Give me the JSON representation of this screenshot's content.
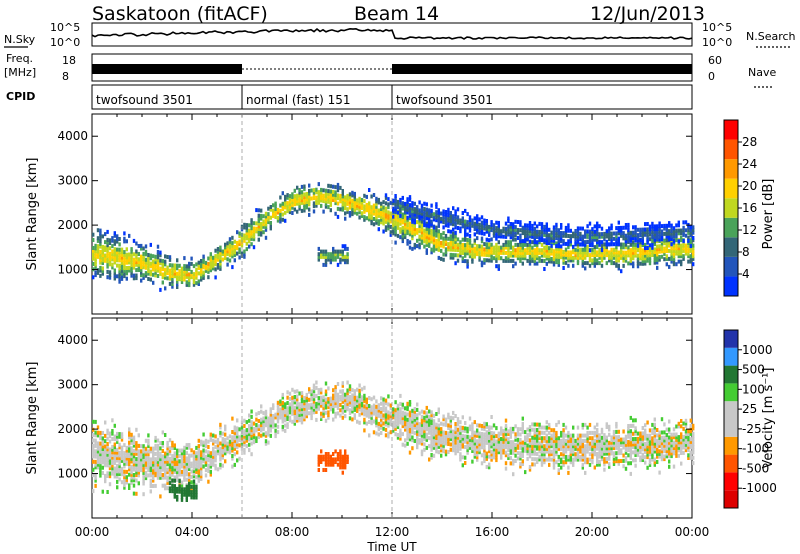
{
  "header": {
    "station": "Saskatoon (fitACF)",
    "beam": "Beam 14",
    "date": "12/Jun/2013"
  },
  "status_panels": {
    "nsky_label": "N.Sky",
    "noise_ticks": [
      "10^5",
      "10^0"
    ],
    "nsearch_label": "N.Search",
    "freq_label_top": "Freq.",
    "freq_label_unit": "[MHz]",
    "freq_ticks": [
      "18",
      "8"
    ],
    "nave_ticks": [
      "60",
      "0"
    ],
    "nave_label": "Nave",
    "cpid_label": "CPID",
    "cpid_segments": [
      {
        "label": "twofsound 3501",
        "start_hour": 0,
        "end_hour": 6
      },
      {
        "label": "normal (fast) 151",
        "start_hour": 6,
        "end_hour": 12
      },
      {
        "label": "twofsound 3501",
        "start_hour": 12,
        "end_hour": 24
      }
    ]
  },
  "x_axis": {
    "label": "Time UT",
    "ticks": [
      "00:00",
      "04:00",
      "08:00",
      "12:00",
      "16:00",
      "20:00",
      "00:00"
    ],
    "range_hours": [
      0,
      24
    ]
  },
  "colors": {
    "power_scale": [
      "#0033ff",
      "#2255bb",
      "#336677",
      "#4aa35a",
      "#c0d820",
      "#ffd000",
      "#ff9900",
      "#ff5500",
      "#ff0000"
    ],
    "velocity_scale": [
      "#2233aa",
      "#3399ff",
      "#227733",
      "#44cc33",
      "#c8c8c8",
      "#c8c8c8",
      "#ff9900",
      "#ff5500",
      "#ff0000",
      "#dd0000"
    ]
  },
  "chart_data": [
    {
      "type": "heatmap",
      "title": "Power",
      "xlabel": "Time UT",
      "ylabel": "Slant Range [km]",
      "colorbar_label": "Power [dB]",
      "colorbar_ticks": [
        "4",
        "8",
        "12",
        "16",
        "20",
        "24",
        "28"
      ],
      "xlim_hours": [
        0,
        24
      ],
      "ylim_km": [
        0,
        4500
      ],
      "yticks": [
        "1000",
        "2000",
        "3000",
        "4000"
      ],
      "bands": [
        {
          "name": "main",
          "points": [
            [
              0,
              1400,
              500
            ],
            [
              1,
              1300,
              500
            ],
            [
              2,
              1200,
              400
            ],
            [
              3,
              1000,
              350
            ],
            [
              4,
              900,
              300
            ],
            [
              5,
              1300,
              300
            ],
            [
              6,
              1700,
              350
            ],
            [
              7,
              2200,
              300
            ],
            [
              8,
              2600,
              300
            ],
            [
              9,
              2700,
              300
            ],
            [
              10,
              2600,
              300
            ],
            [
              11,
              2400,
              350
            ],
            [
              12,
              2200,
              400
            ],
            [
              13,
              1900,
              400
            ],
            [
              14,
              1600,
              350
            ],
            [
              15,
              1500,
              300
            ],
            [
              16,
              1450,
              300
            ],
            [
              17,
              1450,
              300
            ],
            [
              18,
              1450,
              300
            ],
            [
              19,
              1400,
              300
            ],
            [
              20,
              1400,
              300
            ],
            [
              21,
              1400,
              300
            ],
            [
              22,
              1450,
              350
            ],
            [
              23,
              1500,
              350
            ],
            [
              24,
              1500,
              350
            ]
          ],
          "power_db": 20
        },
        {
          "name": "upper",
          "points": [
            [
              12,
              2500,
              250
            ],
            [
              14,
              2200,
              250
            ],
            [
              16,
              1950,
              250
            ],
            [
              18,
              1850,
              250
            ],
            [
              20,
              1800,
              250
            ],
            [
              22,
              1850,
              250
            ],
            [
              24,
              1900,
              250
            ]
          ],
          "power_db": 10
        },
        {
          "name": "blob",
          "points": [
            [
              9.0,
              1350,
              200
            ],
            [
              9.6,
              1350,
              200
            ],
            [
              10.2,
              1350,
              200
            ]
          ],
          "power_db": 16
        }
      ]
    },
    {
      "type": "heatmap",
      "title": "Velocity",
      "xlabel": "Time UT",
      "ylabel": "Slant Range [km]",
      "colorbar_label": "Velocity [m s⁻¹]",
      "colorbar_ticks": [
        "1000",
        "500",
        "100",
        "25",
        "-25",
        "-100",
        "-500",
        "-1000"
      ],
      "xlim_hours": [
        0,
        24
      ],
      "ylim_km": [
        0,
        4500
      ],
      "yticks": [
        "1000",
        "2000",
        "3000",
        "4000"
      ],
      "bands": [
        {
          "name": "ground_scatter",
          "points": [
            [
              0,
              1500,
              700
            ],
            [
              2,
              1300,
              600
            ],
            [
              4,
              1200,
              500
            ],
            [
              6,
              1900,
              400
            ],
            [
              8,
              2500,
              400
            ],
            [
              10,
              2700,
              400
            ],
            [
              12,
              2300,
              500
            ],
            [
              14,
              1900,
              500
            ],
            [
              16,
              1700,
              500
            ],
            [
              18,
              1650,
              500
            ],
            [
              20,
              1650,
              500
            ],
            [
              22,
              1700,
              500
            ],
            [
              24,
              1750,
              500
            ]
          ],
          "velocity_ms": 0
        },
        {
          "name": "negative_blob",
          "points": [
            [
              9.0,
              1350,
              220
            ],
            [
              9.6,
              1350,
              220
            ],
            [
              10.2,
              1350,
              220
            ]
          ],
          "velocity_ms": -300
        },
        {
          "name": "positive_blob",
          "points": [
            [
              3.0,
              700,
              220
            ],
            [
              3.6,
              650,
              200
            ],
            [
              4.2,
              620,
              180
            ]
          ],
          "velocity_ms": 150
        }
      ]
    }
  ]
}
